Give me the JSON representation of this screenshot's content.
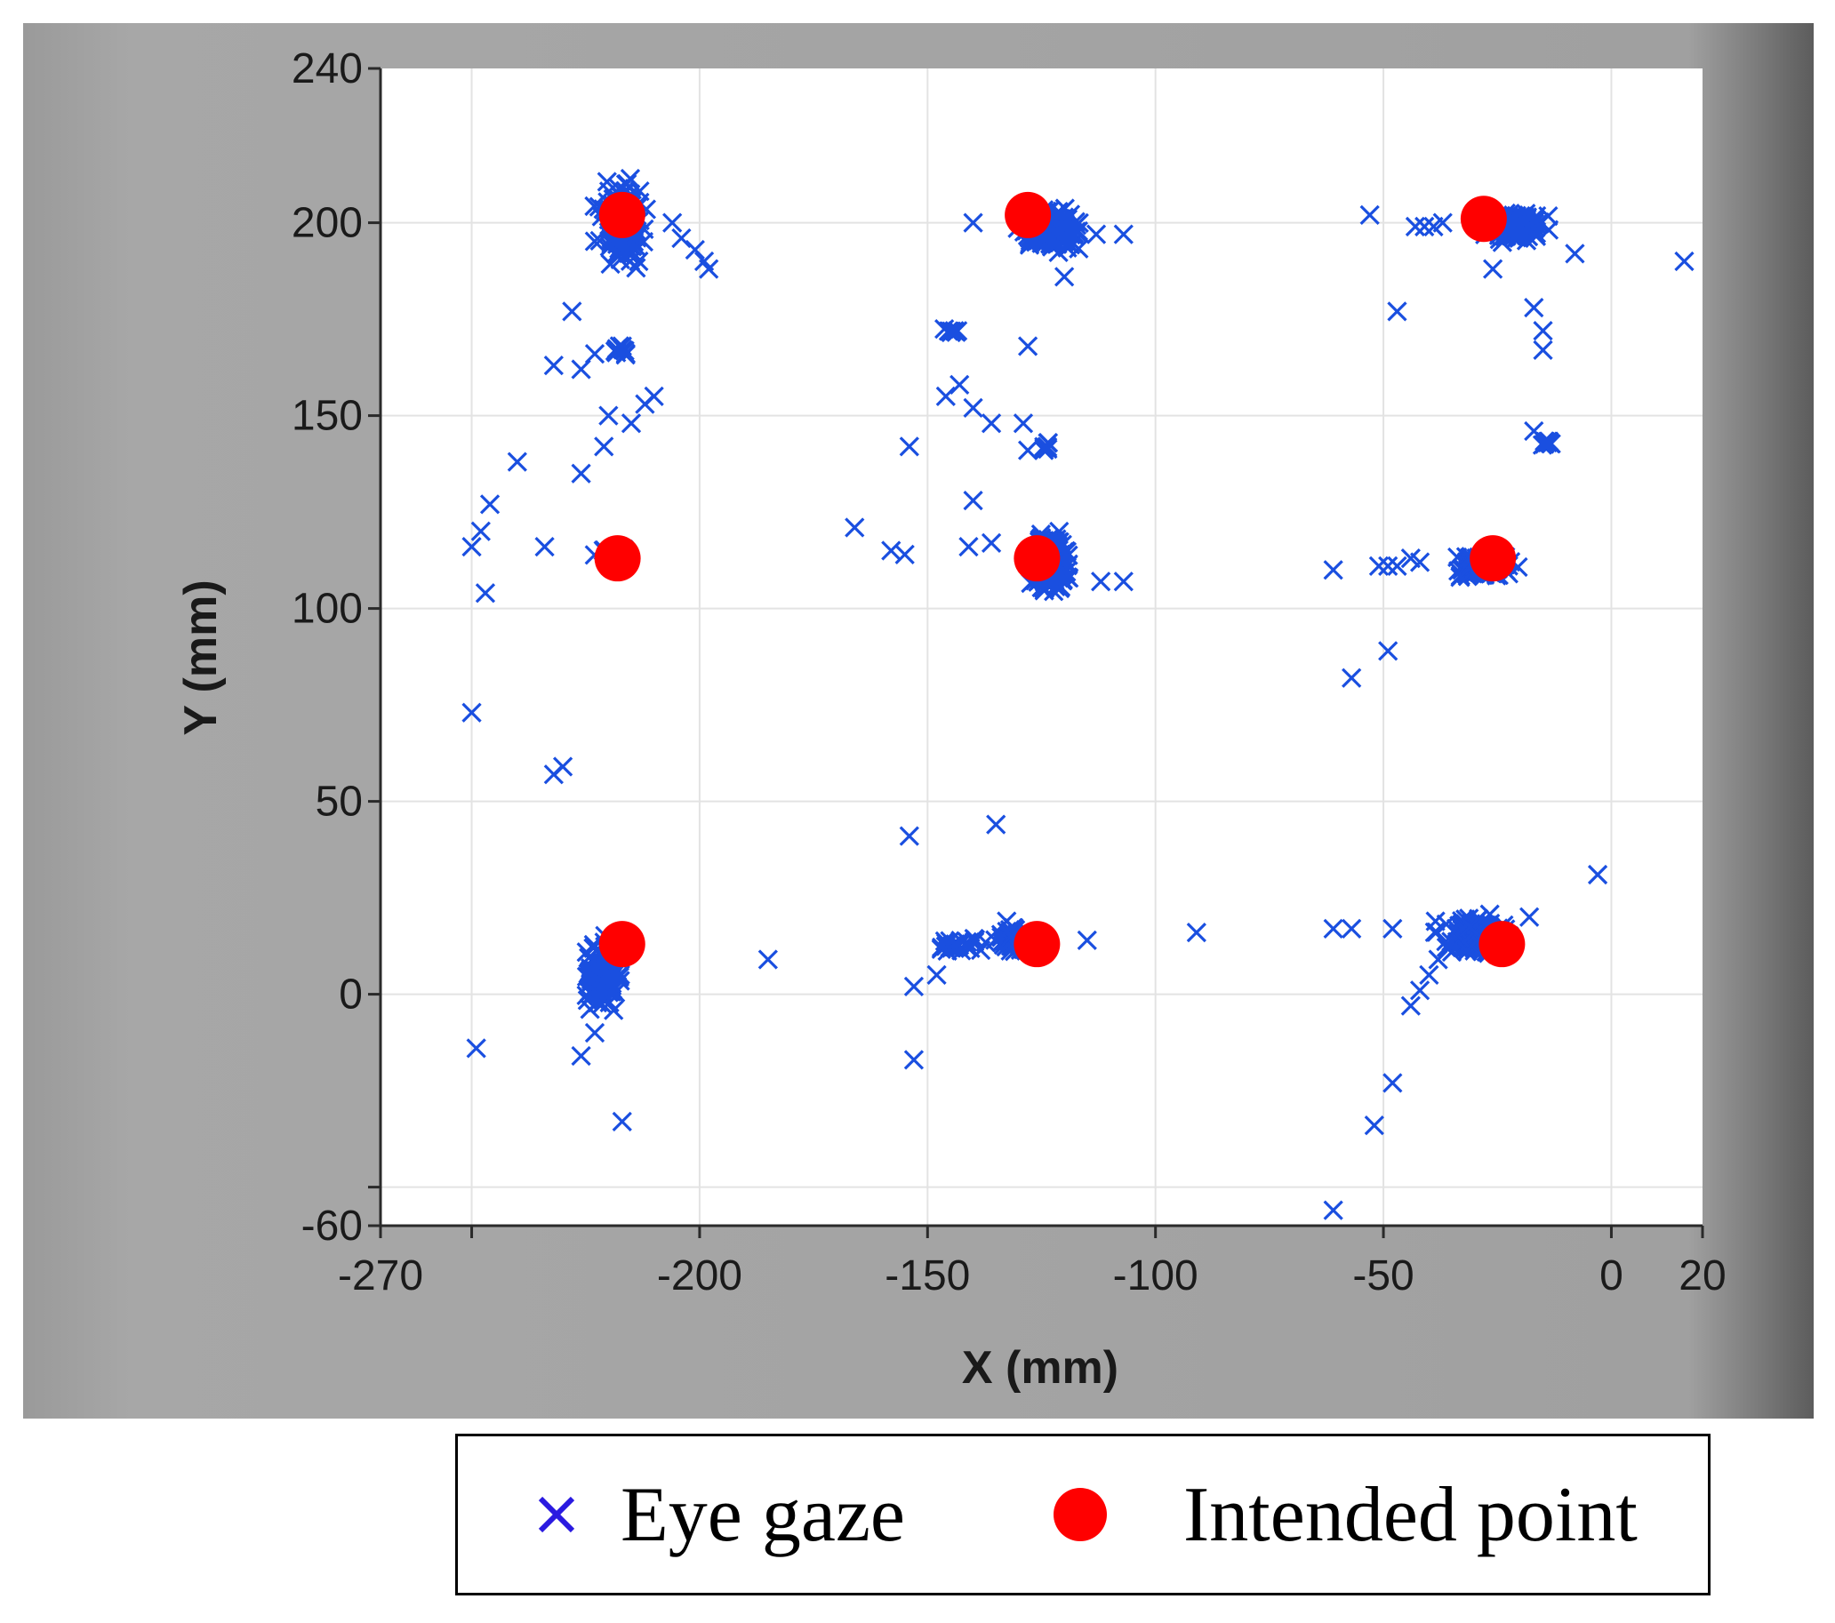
{
  "chart_data": {
    "type": "scatter",
    "title": "",
    "xlabel": "X (mm)",
    "ylabel": "Y (mm)",
    "xlim": [
      -270,
      20
    ],
    "ylim": [
      -60,
      240
    ],
    "xticks": [
      -270,
      -250,
      -200,
      -150,
      -100,
      -50,
      0,
      20
    ],
    "xtick_labels": [
      "-270",
      "",
      "-200",
      "-150",
      "-100",
      "-50",
      "0",
      "20"
    ],
    "yticks": [
      240,
      200,
      150,
      100,
      50,
      0,
      -50,
      -60
    ],
    "ytick_labels": [
      "240",
      "200",
      "150",
      "100",
      "50",
      "0",
      "",
      "-60"
    ],
    "grid": true,
    "background_color": "#ffffff",
    "frame_color": "#a4a4a4",
    "series": [
      {
        "name": "Eye gaze",
        "marker": "x",
        "color": "#1a4fe0",
        "clusters": [
          {
            "center": [
              -217,
              200
            ],
            "spread": [
              4,
              8
            ],
            "count": 150
          },
          {
            "center": [
              -123,
              198
            ],
            "spread": [
              5,
              4
            ],
            "count": 150
          },
          {
            "center": [
              -21,
              199
            ],
            "spread": [
              5,
              3
            ],
            "count": 130
          },
          {
            "center": [
              -123,
              112
            ],
            "spread": [
              3,
              7
            ],
            "count": 160
          },
          {
            "center": [
              -28,
              111
            ],
            "spread": [
              5,
              2.5
            ],
            "count": 110
          },
          {
            "center": [
              -220,
              115
            ],
            "spread": [
              3,
              1
            ],
            "count": 14
          },
          {
            "center": [
              -221,
              5
            ],
            "spread": [
              3,
              6
            ],
            "count": 140
          },
          {
            "center": [
              -30,
              15
            ],
            "spread": [
              6,
              4
            ],
            "count": 130
          },
          {
            "center": [
              -131,
              14
            ],
            "spread": [
              4,
              3
            ],
            "count": 60
          },
          {
            "center": [
              -143,
              13
            ],
            "spread": [
              4,
              1.5
            ],
            "count": 25
          },
          {
            "center": [
              -218,
              167
            ],
            "spread": [
              2,
              1
            ],
            "count": 10
          },
          {
            "center": [
              -124,
              142
            ],
            "spread": [
              1,
              1
            ],
            "count": 8
          },
          {
            "center": [
              -14,
              143
            ],
            "spread": [
              1.5,
              0.8
            ],
            "count": 8
          },
          {
            "center": [
              -145,
              172
            ],
            "spread": [
              1.5,
              0.8
            ],
            "count": 8
          }
        ],
        "points": [
          [
            -250,
            116
          ],
          [
            -248,
            120
          ],
          [
            -246,
            127
          ],
          [
            -240,
            138
          ],
          [
            -247,
            104
          ],
          [
            -250,
            73
          ],
          [
            -232,
            57
          ],
          [
            -230,
            59
          ],
          [
            -228,
            177
          ],
          [
            -232,
            163
          ],
          [
            -226,
            162
          ],
          [
            -223,
            166
          ],
          [
            -221,
            142
          ],
          [
            -226,
            135
          ],
          [
            -220,
            150
          ],
          [
            -215,
            148
          ],
          [
            -212,
            153
          ],
          [
            -210,
            155
          ],
          [
            -206,
            200
          ],
          [
            -204,
            196
          ],
          [
            -201,
            193
          ],
          [
            -199,
            190
          ],
          [
            -198,
            188
          ],
          [
            -234,
            116
          ],
          [
            -249,
            -14
          ],
          [
            -226,
            -16
          ],
          [
            -223,
            -10
          ],
          [
            -217,
            -33
          ],
          [
            -185,
            9
          ],
          [
            -166,
            121
          ],
          [
            -158,
            115
          ],
          [
            -155,
            114
          ],
          [
            -154,
            142
          ],
          [
            -154,
            41
          ],
          [
            -153,
            2
          ],
          [
            -153,
            -17
          ],
          [
            -148,
            5
          ],
          [
            -146,
            155
          ],
          [
            -143,
            158
          ],
          [
            -140,
            152
          ],
          [
            -136,
            148
          ],
          [
            -140,
            128
          ],
          [
            -141,
            116
          ],
          [
            -136,
            117
          ],
          [
            -140,
            200
          ],
          [
            -135,
            44
          ],
          [
            -128,
            168
          ],
          [
            -129,
            148
          ],
          [
            -128,
            141
          ],
          [
            -115,
            14
          ],
          [
            -112,
            107
          ],
          [
            -107,
            107
          ],
          [
            -107,
            197
          ],
          [
            -113,
            197
          ],
          [
            -120,
            186
          ],
          [
            -91,
            16
          ],
          [
            -61,
            110
          ],
          [
            -61,
            17
          ],
          [
            -61,
            -56
          ],
          [
            -57,
            82
          ],
          [
            -57,
            17
          ],
          [
            -53,
            202
          ],
          [
            -52,
            -34
          ],
          [
            -49,
            89
          ],
          [
            -47,
            177
          ],
          [
            -48,
            17
          ],
          [
            -48,
            -23
          ],
          [
            -43,
            199
          ],
          [
            -41,
            199
          ],
          [
            -39,
            199
          ],
          [
            -37,
            200
          ],
          [
            -51,
            111
          ],
          [
            -49,
            111
          ],
          [
            -47,
            111
          ],
          [
            -44,
            113
          ],
          [
            -42,
            112
          ],
          [
            -44,
            -3
          ],
          [
            -42,
            1
          ],
          [
            -40,
            5
          ],
          [
            -38,
            9
          ],
          [
            -26,
            188
          ],
          [
            -17,
            146
          ],
          [
            -17,
            178
          ],
          [
            -15,
            172
          ],
          [
            -15,
            167
          ],
          [
            -14,
            143
          ],
          [
            -18,
            20
          ],
          [
            -8,
            192
          ],
          [
            -3,
            31
          ],
          [
            16,
            190
          ]
        ]
      },
      {
        "name": "Intended point",
        "marker": "o",
        "color": "#ff0000",
        "points": [
          [
            -217,
            202
          ],
          [
            -128,
            202
          ],
          [
            -28,
            201
          ],
          [
            -218,
            113
          ],
          [
            -126,
            113
          ],
          [
            -26,
            113
          ],
          [
            -217,
            13
          ],
          [
            -126,
            13
          ],
          [
            -24,
            13
          ]
        ]
      }
    ]
  },
  "legend": {
    "entries": [
      {
        "label": "Eye gaze",
        "color": "#1a4fe0"
      },
      {
        "label": "Intended point",
        "color": "#ff0000"
      }
    ]
  }
}
